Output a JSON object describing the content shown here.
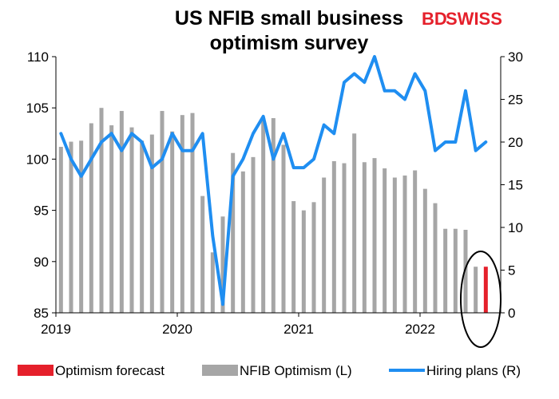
{
  "chart_data": {
    "type": "bar",
    "title": "US NFIB small business optimism survey",
    "title_lines": [
      "US NFIB small business",
      "optimism survey"
    ],
    "logo": {
      "text_bd": "BD",
      "text_swiss": "SWISS",
      "color_bd": "#e5202b",
      "color_swiss": "#e5202b"
    },
    "x_ticks": [
      "2019",
      "2020",
      "2021",
      "2022"
    ],
    "y_left": {
      "min": 85,
      "max": 110,
      "ticks": [
        "85",
        "90",
        "95",
        "100",
        "105",
        "110"
      ]
    },
    "y_right": {
      "min": 0,
      "max": 30,
      "ticks": [
        "0",
        "5",
        "10",
        "15",
        "20",
        "25",
        "30"
      ]
    },
    "months": [
      "2019-01",
      "2019-02",
      "2019-03",
      "2019-04",
      "2019-05",
      "2019-06",
      "2019-07",
      "2019-08",
      "2019-09",
      "2019-10",
      "2019-11",
      "2019-12",
      "2020-01",
      "2020-02",
      "2020-03",
      "2020-04",
      "2020-05",
      "2020-06",
      "2020-07",
      "2020-08",
      "2020-09",
      "2020-10",
      "2020-11",
      "2020-12",
      "2021-01",
      "2021-02",
      "2021-03",
      "2021-04",
      "2021-05",
      "2021-06",
      "2021-07",
      "2021-08",
      "2021-09",
      "2021-10",
      "2021-11",
      "2021-12",
      "2022-01",
      "2022-02",
      "2022-03",
      "2022-04",
      "2022-05",
      "2022-06",
      "2022-07"
    ],
    "series": [
      {
        "name": "NFIB Optimism (L)",
        "axis": "left",
        "type": "bar",
        "color": "#a6a6a6",
        "values": [
          101.2,
          101.7,
          101.8,
          103.5,
          105.0,
          103.3,
          104.7,
          103.1,
          101.8,
          102.4,
          104.7,
          102.7,
          104.3,
          104.5,
          96.4,
          90.9,
          94.4,
          100.6,
          98.8,
          100.2,
          104.0,
          104.0,
          101.4,
          95.9,
          95.0,
          95.8,
          98.2,
          99.8,
          99.6,
          102.5,
          99.7,
          100.1,
          99.1,
          98.2,
          98.4,
          98.9,
          97.1,
          95.7,
          93.2,
          93.2,
          93.1,
          89.5,
          null
        ]
      },
      {
        "name": "Optimism forecast",
        "axis": "left",
        "type": "bar",
        "color": "#e5202b",
        "values": [
          null,
          null,
          null,
          null,
          null,
          null,
          null,
          null,
          null,
          null,
          null,
          null,
          null,
          null,
          null,
          null,
          null,
          null,
          null,
          null,
          null,
          null,
          null,
          null,
          null,
          null,
          null,
          null,
          null,
          null,
          null,
          null,
          null,
          null,
          null,
          null,
          null,
          null,
          null,
          null,
          null,
          null,
          89.5
        ]
      },
      {
        "name": "Hiring plans (R)",
        "axis": "right",
        "type": "line",
        "color": "#1f8ef1",
        "values": [
          21,
          18,
          16,
          18,
          20,
          21,
          19,
          21,
          20,
          17,
          18,
          21,
          19,
          19,
          21,
          9,
          1,
          16,
          18,
          21,
          23,
          18,
          21,
          17,
          17,
          18,
          22,
          21,
          27,
          28,
          27,
          31,
          26,
          26,
          25,
          28,
          26,
          19,
          20,
          20,
          26,
          19,
          20
        ]
      }
    ],
    "annotation": {
      "type": "ellipse",
      "target": "2022-06 to 2022-07",
      "color": "#000000"
    },
    "legend_position": "bottom",
    "grid": false
  }
}
